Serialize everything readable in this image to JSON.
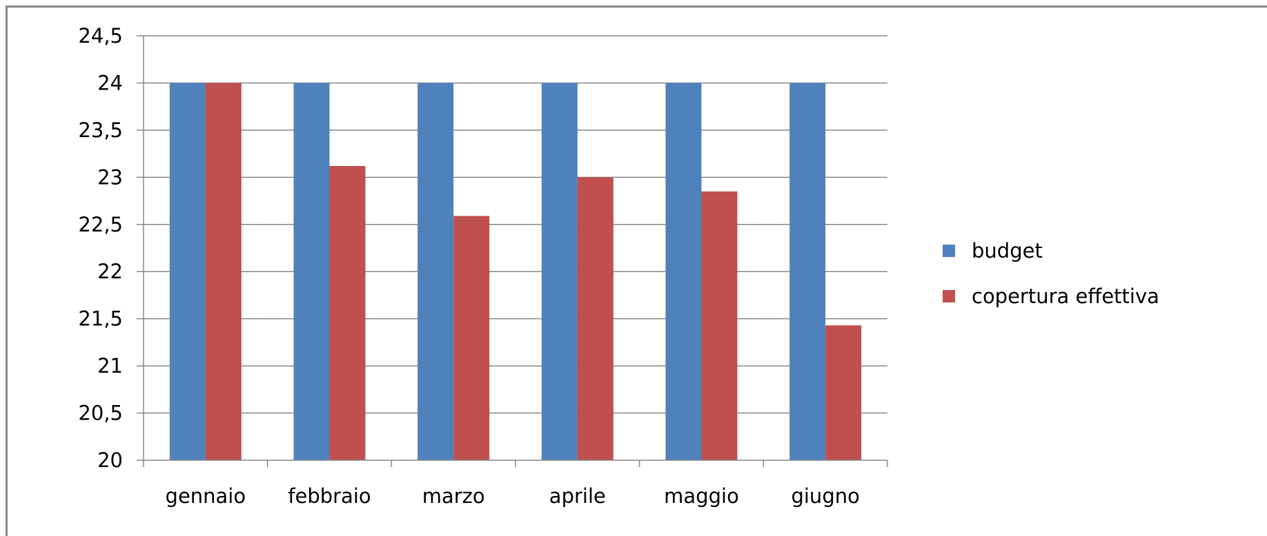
{
  "chart_data": {
    "type": "bar",
    "categories": [
      "gennaio",
      "febbraio",
      "marzo",
      "aprile",
      "maggio",
      "giugno"
    ],
    "series": [
      {
        "name": "budget",
        "color": "#4F81BD",
        "values": [
          24,
          24,
          24,
          24,
          24,
          24
        ]
      },
      {
        "name": "copertura effettiva",
        "color": "#C0504D",
        "values": [
          24,
          23.12,
          22.59,
          23,
          22.85,
          21.43
        ]
      }
    ],
    "title": "",
    "xlabel": "",
    "ylabel": "",
    "ylim": [
      20,
      24.5
    ],
    "yticks": [
      "20",
      "20,5",
      "21",
      "21,5",
      "22",
      "22,5",
      "23",
      "23,5",
      "24",
      "24,5"
    ],
    "grid": true,
    "legend_position": "right"
  }
}
